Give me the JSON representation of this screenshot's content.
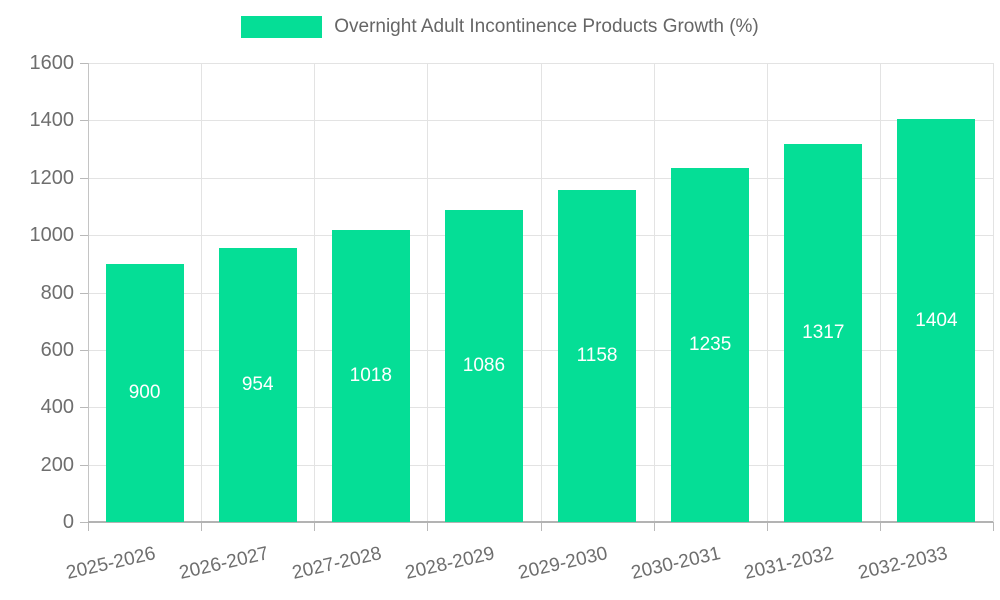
{
  "legend": {
    "label": "Overnight Adult Incontinence Products Growth (%)"
  },
  "colors": {
    "bar": "#05de96",
    "legend_text": "#666666",
    "axis_text": "#6e6e6e",
    "grid_line": "#e3e3e3",
    "y_axis_line": "#c4c4c4",
    "x_axis_line": "#b3b3b3",
    "tick": "#b9b9b9",
    "value_label": "#ffffff",
    "background": "#ffffff"
  },
  "chart_data": {
    "type": "bar",
    "title": "Overnight Adult Incontinence Products Growth (%)",
    "series_name": "Overnight Adult Incontinence Products Growth (%)",
    "categories": [
      "2025-2026",
      "2026-2027",
      "2027-2028",
      "2028-2029",
      "2029-2030",
      "2030-2031",
      "2031-2032",
      "2032-2033"
    ],
    "values": [
      900,
      954,
      1018,
      1086,
      1158,
      1235,
      1317,
      1404
    ],
    "xlabel": "",
    "ylabel": "",
    "ylim": [
      0,
      1600
    ],
    "yticks": [
      0,
      200,
      400,
      600,
      800,
      1000,
      1200,
      1400,
      1600
    ],
    "grid": "horizontal-and-vertical",
    "legend_position": "top-center",
    "value_label_position": "inside-center",
    "x_label_rotation_deg": -13
  }
}
